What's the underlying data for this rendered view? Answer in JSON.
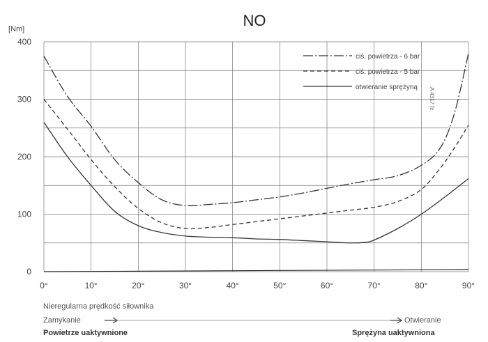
{
  "chart_data": {
    "type": "line",
    "title": "NO",
    "ylabel": "[Nm]",
    "xlabel": "",
    "xlim": [
      0,
      90
    ],
    "ylim": [
      0,
      400
    ],
    "x_ticks": [
      0,
      10,
      20,
      30,
      40,
      50,
      60,
      70,
      80,
      90
    ],
    "x_tick_labels": [
      "0°",
      "10°",
      "20°",
      "30°",
      "40°",
      "50°",
      "60°",
      "70°",
      "80°",
      "90°"
    ],
    "y_ticks": [
      0,
      100,
      200,
      300,
      400
    ],
    "y_tick_labels": [
      "0",
      "100",
      "200",
      "300",
      "400"
    ],
    "grid": true,
    "legend_position": "top-right",
    "side_note": "A 4317 fc",
    "series": [
      {
        "name": "ciś. powietrza - 6 bar",
        "style": "dash-dot",
        "x": [
          0,
          5,
          10,
          15,
          20,
          25,
          30,
          35,
          40,
          45,
          50,
          55,
          60,
          65,
          70,
          75,
          80,
          84,
          87,
          90
        ],
        "y": [
          375,
          305,
          253,
          195,
          155,
          125,
          115,
          117,
          120,
          125,
          130,
          137,
          145,
          153,
          160,
          167,
          185,
          215,
          275,
          380
        ]
      },
      {
        "name": "ciś. powietrza - 5 bar",
        "style": "dashed",
        "x": [
          0,
          5,
          10,
          15,
          20,
          25,
          30,
          35,
          40,
          45,
          50,
          55,
          60,
          65,
          70,
          75,
          80,
          84,
          87,
          90
        ],
        "y": [
          300,
          248,
          195,
          148,
          110,
          85,
          75,
          77,
          82,
          87,
          92,
          97,
          102,
          107,
          112,
          122,
          143,
          180,
          215,
          255
        ]
      },
      {
        "name": "otwieranie sprężyną",
        "style": "solid",
        "x": [
          0,
          5,
          10,
          15,
          20,
          25,
          30,
          35,
          40,
          45,
          50,
          55,
          60,
          65,
          68,
          70,
          75,
          80,
          85,
          90
        ],
        "y": [
          260,
          200,
          150,
          105,
          80,
          68,
          62,
          60,
          59,
          57,
          56,
          54,
          52,
          50,
          51,
          55,
          75,
          100,
          130,
          162
        ]
      }
    ]
  },
  "annotations": {
    "speed_note": "Nieregularna prędkość siłownika",
    "closing": "Zamykanie",
    "opening": "Otwieranie",
    "air_active": "Powietrze uaktywnione",
    "spring_active": "Sprężyna uaktywniona"
  },
  "colors": {
    "line": "#333333",
    "grid": "#7a7a7a",
    "text": "#444444"
  }
}
